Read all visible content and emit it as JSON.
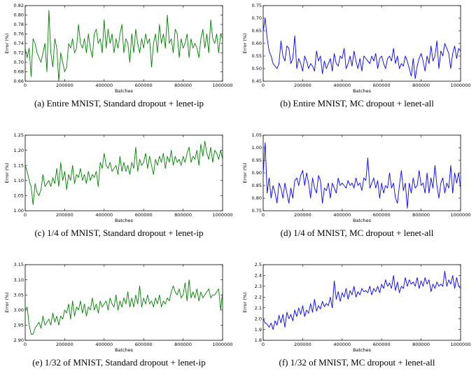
{
  "chart_data": [
    {
      "type": "line",
      "caption": "(a) Entire MNIST, Standard dropout + lenet-ip",
      "xlabel": "Batches",
      "ylabel": "Error (%)",
      "color": "#008000",
      "xlim": [
        0,
        1000000
      ],
      "ylim": [
        0.66,
        0.82
      ],
      "xticks": [
        0,
        200000,
        400000,
        600000,
        800000,
        1000000
      ],
      "xtick_labels": [
        "0",
        "200000",
        "400000",
        "600000",
        "800000",
        "1000000"
      ],
      "yticks": [
        0.66,
        0.68,
        0.7,
        0.72,
        0.74,
        0.76,
        0.78,
        0.8,
        0.82
      ],
      "ytick_labels": [
        "0.66",
        "0.68",
        "0.70",
        "0.72",
        "0.74",
        "0.76",
        "0.78",
        "0.80",
        "0.82"
      ],
      "x_step": 10000,
      "values": [
        0.73,
        0.71,
        0.73,
        0.67,
        0.75,
        0.74,
        0.72,
        0.71,
        0.7,
        0.72,
        0.74,
        0.68,
        0.81,
        0.72,
        0.69,
        0.75,
        0.73,
        0.66,
        0.72,
        0.7,
        0.68,
        0.69,
        0.74,
        0.73,
        0.75,
        0.72,
        0.73,
        0.78,
        0.74,
        0.73,
        0.75,
        0.72,
        0.76,
        0.73,
        0.71,
        0.76,
        0.77,
        0.74,
        0.75,
        0.72,
        0.79,
        0.73,
        0.77,
        0.74,
        0.76,
        0.72,
        0.75,
        0.73,
        0.76,
        0.78,
        0.72,
        0.75,
        0.74,
        0.7,
        0.76,
        0.72,
        0.77,
        0.74,
        0.72,
        0.75,
        0.73,
        0.76,
        0.74,
        0.75,
        0.69,
        0.74,
        0.76,
        0.72,
        0.78,
        0.74,
        0.76,
        0.73,
        0.8,
        0.74,
        0.75,
        0.72,
        0.77,
        0.76,
        0.71,
        0.75,
        0.73,
        0.74,
        0.76,
        0.71,
        0.75,
        0.73,
        0.74,
        0.73,
        0.71,
        0.75,
        0.77,
        0.73,
        0.76,
        0.72,
        0.79,
        0.75,
        0.74,
        0.76,
        0.72,
        0.76,
        0.75
      ]
    },
    {
      "type": "line",
      "caption": "(b) Entire MNIST, MC dropout + lenet-all",
      "xlabel": "Batches",
      "ylabel": "Error (%)",
      "color": "#0000ff",
      "xlim": [
        0,
        1000000
      ],
      "ylim": [
        0.45,
        0.75
      ],
      "xticks": [
        0,
        200000,
        400000,
        600000,
        800000,
        1000000
      ],
      "xtick_labels": [
        "0",
        "200000",
        "400000",
        "600000",
        "800000",
        "1000000"
      ],
      "yticks": [
        0.45,
        0.5,
        0.55,
        0.6,
        0.65,
        0.7,
        0.75
      ],
      "ytick_labels": [
        "0.45",
        "0.50",
        "0.55",
        "0.60",
        "0.65",
        "0.70",
        "0.75"
      ],
      "x_step": 10000,
      "values": [
        0.65,
        0.7,
        0.62,
        0.57,
        0.55,
        0.52,
        0.51,
        0.5,
        0.52,
        0.61,
        0.55,
        0.53,
        0.59,
        0.58,
        0.52,
        0.54,
        0.63,
        0.5,
        0.54,
        0.52,
        0.49,
        0.55,
        0.53,
        0.5,
        0.52,
        0.51,
        0.49,
        0.57,
        0.53,
        0.55,
        0.48,
        0.53,
        0.5,
        0.52,
        0.54,
        0.49,
        0.56,
        0.52,
        0.51,
        0.55,
        0.54,
        0.58,
        0.5,
        0.52,
        0.55,
        0.51,
        0.57,
        0.53,
        0.5,
        0.54,
        0.49,
        0.55,
        0.54,
        0.53,
        0.52,
        0.55,
        0.53,
        0.56,
        0.5,
        0.54,
        0.55,
        0.52,
        0.5,
        0.54,
        0.55,
        0.53,
        0.58,
        0.52,
        0.55,
        0.5,
        0.52,
        0.51,
        0.55,
        0.53,
        0.5,
        0.47,
        0.54,
        0.46,
        0.51,
        0.54,
        0.56,
        0.53,
        0.49,
        0.55,
        0.52,
        0.59,
        0.53,
        0.55,
        0.61,
        0.5,
        0.57,
        0.55,
        0.6,
        0.58,
        0.56,
        0.5,
        0.56,
        0.59,
        0.54,
        0.58,
        0.57
      ]
    },
    {
      "type": "line",
      "caption": "(c) 1/4 of MNIST, Standard dropout + lenet-ip",
      "xlabel": "Batches",
      "ylabel": "Error (%)",
      "color": "#008000",
      "xlim": [
        0,
        1000000
      ],
      "ylim": [
        1.0,
        1.25
      ],
      "xticks": [
        0,
        200000,
        400000,
        600000,
        800000,
        1000000
      ],
      "xtick_labels": [
        "0",
        "200000",
        "400000",
        "600000",
        "800000",
        "1000000"
      ],
      "yticks": [
        1.0,
        1.05,
        1.1,
        1.15,
        1.2,
        1.25
      ],
      "ytick_labels": [
        "1.00",
        "1.05",
        "1.10",
        "1.15",
        "1.20",
        "1.25"
      ],
      "x_step": 10000,
      "values": [
        1.15,
        1.13,
        1.1,
        1.08,
        1.02,
        1.09,
        1.06,
        1.05,
        1.07,
        1.12,
        1.08,
        1.09,
        1.1,
        1.08,
        1.11,
        1.09,
        1.14,
        1.08,
        1.16,
        1.1,
        1.13,
        1.07,
        1.12,
        1.1,
        1.15,
        1.09,
        1.12,
        1.11,
        1.14,
        1.1,
        1.12,
        1.09,
        1.13,
        1.1,
        1.12,
        1.11,
        1.13,
        1.08,
        1.16,
        1.14,
        1.19,
        1.15,
        1.14,
        1.16,
        1.13,
        1.14,
        1.15,
        1.12,
        1.18,
        1.13,
        1.16,
        1.13,
        1.15,
        1.12,
        1.16,
        1.14,
        1.21,
        1.13,
        1.17,
        1.15,
        1.16,
        1.19,
        1.14,
        1.18,
        1.15,
        1.12,
        1.17,
        1.15,
        1.18,
        1.16,
        1.19,
        1.14,
        1.18,
        1.16,
        1.2,
        1.15,
        1.18,
        1.16,
        1.17,
        1.15,
        1.18,
        1.16,
        1.19,
        1.21,
        1.16,
        1.18,
        1.17,
        1.2,
        1.15,
        1.22,
        1.18,
        1.23,
        1.19,
        1.17,
        1.21,
        1.16,
        1.2,
        1.19,
        1.17,
        1.2,
        1.17
      ]
    },
    {
      "type": "line",
      "caption": "(d) 1/4 of MNIST, MC dropout + lenet-all",
      "xlabel": "Batches",
      "ylabel": "Error (%)",
      "color": "#0000ff",
      "xlim": [
        0,
        1000000
      ],
      "ylim": [
        0.75,
        1.05
      ],
      "xticks": [
        0,
        200000,
        400000,
        600000,
        800000,
        1000000
      ],
      "xtick_labels": [
        "0",
        "200000",
        "400000",
        "600000",
        "800000",
        "1000000"
      ],
      "yticks": [
        0.75,
        0.8,
        0.85,
        0.9,
        0.95,
        1.0,
        1.05
      ],
      "ytick_labels": [
        "0.75",
        "0.80",
        "0.85",
        "0.90",
        "0.95",
        "1.00",
        "1.05"
      ],
      "x_step": 10000,
      "values": [
        0.9,
        1.02,
        0.82,
        0.88,
        0.8,
        0.85,
        0.82,
        0.78,
        0.86,
        0.84,
        0.8,
        0.86,
        0.82,
        0.78,
        0.84,
        0.8,
        0.87,
        0.88,
        0.85,
        0.89,
        0.91,
        0.85,
        0.9,
        0.86,
        0.8,
        0.88,
        0.84,
        0.82,
        0.89,
        0.87,
        0.78,
        0.84,
        0.83,
        0.86,
        0.8,
        0.86,
        0.84,
        0.82,
        0.88,
        0.85,
        0.86,
        0.85,
        0.84,
        0.87,
        0.85,
        0.86,
        0.84,
        0.88,
        0.85,
        0.86,
        0.83,
        0.88,
        0.87,
        0.96,
        0.84,
        0.86,
        0.88,
        0.84,
        0.87,
        0.8,
        0.86,
        0.82,
        0.85,
        0.84,
        0.9,
        0.84,
        0.86,
        0.8,
        0.78,
        0.85,
        0.91,
        0.83,
        0.86,
        0.76,
        0.86,
        0.82,
        0.88,
        0.84,
        0.85,
        0.91,
        0.85,
        0.86,
        0.82,
        0.9,
        0.82,
        0.88,
        0.84,
        0.93,
        0.85,
        0.8,
        0.86,
        0.88,
        0.82,
        0.86,
        0.84,
        0.93,
        0.82,
        0.9,
        0.86,
        0.9,
        0.84
      ]
    },
    {
      "type": "line",
      "caption": "(e) 1/32 of MNIST, Standard dropout + lenet-ip",
      "xlabel": "Batches",
      "ylabel": "Error (%)",
      "color": "#008000",
      "xlim": [
        0,
        1000000
      ],
      "ylim": [
        2.9,
        3.15
      ],
      "xticks": [
        0,
        200000,
        400000,
        600000,
        800000,
        1000000
      ],
      "xtick_labels": [
        "0",
        "200000",
        "400000",
        "600000",
        "800000",
        "1000000"
      ],
      "yticks": [
        2.9,
        2.95,
        3.0,
        3.05,
        3.1,
        3.15
      ],
      "ytick_labels": [
        "2.90",
        "2.95",
        "3.00",
        "3.05",
        "3.10",
        "3.15"
      ],
      "x_step": 10000,
      "values": [
        3.0,
        3.01,
        2.95,
        2.92,
        2.92,
        2.94,
        2.95,
        2.96,
        2.94,
        2.98,
        2.95,
        2.96,
        2.97,
        2.95,
        2.99,
        2.96,
        2.98,
        2.95,
        2.98,
        2.97,
        3.0,
        2.99,
        3.02,
        2.97,
        3.03,
        2.98,
        3.01,
        3.0,
        3.03,
        2.99,
        3.02,
        2.98,
        3.01,
        3.0,
        3.04,
        3.0,
        3.02,
        2.99,
        3.03,
        3.01,
        3.02,
        3.03,
        3.0,
        3.04,
        3.02,
        3.01,
        3.05,
        3.0,
        3.03,
        3.01,
        3.04,
        3.02,
        3.06,
        3.01,
        3.04,
        3.01,
        3.05,
        3.02,
        3.08,
        3.01,
        3.04,
        3.02,
        3.05,
        3.02,
        3.03,
        3.01,
        3.04,
        3.02,
        3.05,
        3.01,
        3.03,
        3.02,
        3.04,
        3.03,
        3.06,
        3.08,
        3.06,
        3.05,
        3.07,
        3.04,
        3.05,
        3.09,
        3.03,
        3.1,
        3.04,
        3.06,
        3.04,
        3.07,
        3.03,
        3.06,
        3.04,
        3.05,
        3.06,
        3.07,
        3.04,
        3.05,
        3.05,
        3.06,
        3.07,
        3.0,
        3.06
      ]
    },
    {
      "type": "line",
      "caption": "(f) 1/32 of MNIST, MC dropout + lenet-all",
      "xlabel": "Batches",
      "ylabel": "Error (%)",
      "color": "#0000ff",
      "xlim": [
        0,
        1000000
      ],
      "ylim": [
        1.8,
        2.5
      ],
      "xticks": [
        0,
        200000,
        400000,
        600000,
        800000,
        1000000
      ],
      "xtick_labels": [
        "0",
        "200000",
        "400000",
        "600000",
        "800000",
        "1000000"
      ],
      "yticks": [
        1.8,
        1.9,
        2.0,
        2.1,
        2.2,
        2.3,
        2.4,
        2.5
      ],
      "ytick_labels": [
        "1.8",
        "1.9",
        "2.0",
        "2.1",
        "2.2",
        "2.3",
        "2.4",
        "2.5"
      ],
      "x_step": 10000,
      "values": [
        2.0,
        1.96,
        1.95,
        1.92,
        1.96,
        1.9,
        1.98,
        1.94,
        2.03,
        1.96,
        2.04,
        1.92,
        2.06,
        2.0,
        2.04,
        1.98,
        2.08,
        2.02,
        2.1,
        2.04,
        2.12,
        2.02,
        2.08,
        2.05,
        2.14,
        2.06,
        2.18,
        2.07,
        2.12,
        2.09,
        2.16,
        2.11,
        2.14,
        2.12,
        2.2,
        2.1,
        2.35,
        2.18,
        2.25,
        2.16,
        2.24,
        2.2,
        2.28,
        2.18,
        2.26,
        2.22,
        2.3,
        2.2,
        2.25,
        2.22,
        2.28,
        2.25,
        2.26,
        2.24,
        2.3,
        2.22,
        2.28,
        2.25,
        2.3,
        2.24,
        2.32,
        2.28,
        2.36,
        2.3,
        2.33,
        2.28,
        2.4,
        2.26,
        2.34,
        2.24,
        2.3,
        2.28,
        2.38,
        2.3,
        2.36,
        2.32,
        2.34,
        2.3,
        2.38,
        2.28,
        2.35,
        2.3,
        2.38,
        2.32,
        2.36,
        2.25,
        2.32,
        2.28,
        2.34,
        2.3,
        2.32,
        2.3,
        2.44,
        2.3,
        2.36,
        2.32,
        2.4,
        2.28,
        2.38,
        2.3,
        2.28
      ]
    }
  ]
}
